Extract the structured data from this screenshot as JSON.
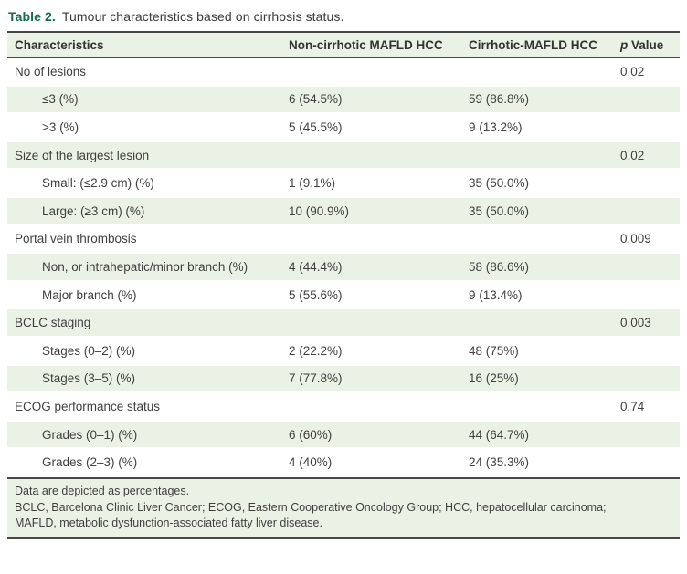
{
  "title": {
    "label": "Table 2.",
    "text": "Tumour characteristics based on cirrhosis status."
  },
  "colors": {
    "accent_green": "#166a4f",
    "row_shade_green": "#eaf2e5",
    "rule_gray": "#474747",
    "text_gray": "#3f3f3f"
  },
  "table": {
    "columns": [
      "Characteristics",
      "Non-cirrhotic MAFLD HCC",
      "Cirrhotic-MAFLD HCC",
      "p Value"
    ],
    "rows": [
      {
        "label": "No of lesions",
        "indent": false,
        "non_cirrhotic": "",
        "cirrhotic": "",
        "p_value": "0.02",
        "shaded": false
      },
      {
        "label": "≤3 (%)",
        "indent": true,
        "non_cirrhotic": "6 (54.5%)",
        "cirrhotic": "59 (86.8%)",
        "p_value": "",
        "shaded": true
      },
      {
        "label": ">3 (%)",
        "indent": true,
        "non_cirrhotic": "5 (45.5%)",
        "cirrhotic": "9 (13.2%)",
        "p_value": "",
        "shaded": false
      },
      {
        "label": "Size of the largest lesion",
        "indent": false,
        "non_cirrhotic": "",
        "cirrhotic": "",
        "p_value": "0.02",
        "shaded": true
      },
      {
        "label": "Small: (≤2.9 cm) (%)",
        "indent": true,
        "non_cirrhotic": "1 (9.1%)",
        "cirrhotic": "35 (50.0%)",
        "p_value": "",
        "shaded": false
      },
      {
        "label": "Large: (≥3 cm) (%)",
        "indent": true,
        "non_cirrhotic": "10 (90.9%)",
        "cirrhotic": "35 (50.0%)",
        "p_value": "",
        "shaded": true
      },
      {
        "label": "Portal vein thrombosis",
        "indent": false,
        "non_cirrhotic": "",
        "cirrhotic": "",
        "p_value": "0.009",
        "shaded": false
      },
      {
        "label": "Non, or intrahepatic/minor branch (%)",
        "indent": true,
        "non_cirrhotic": "4 (44.4%)",
        "cirrhotic": "58 (86.6%)",
        "p_value": "",
        "shaded": true
      },
      {
        "label": "Major branch (%)",
        "indent": true,
        "non_cirrhotic": "5 (55.6%)",
        "cirrhotic": "9 (13.4%)",
        "p_value": "",
        "shaded": false
      },
      {
        "label": "BCLC staging",
        "indent": false,
        "non_cirrhotic": "",
        "cirrhotic": "",
        "p_value": "0.003",
        "shaded": true
      },
      {
        "label": "Stages (0–2) (%)",
        "indent": true,
        "non_cirrhotic": "2 (22.2%)",
        "cirrhotic": "48 (75%)",
        "p_value": "",
        "shaded": false
      },
      {
        "label": "Stages (3–5) (%)",
        "indent": true,
        "non_cirrhotic": "7 (77.8%)",
        "cirrhotic": "16 (25%)",
        "p_value": "",
        "shaded": true
      },
      {
        "label": "ECOG performance status",
        "indent": false,
        "non_cirrhotic": "",
        "cirrhotic": "",
        "p_value": "0.74",
        "shaded": false
      },
      {
        "label": "Grades (0–1) (%)",
        "indent": true,
        "non_cirrhotic": "6 (60%)",
        "cirrhotic": "44 (64.7%)",
        "p_value": "",
        "shaded": true
      },
      {
        "label": "Grades (2–3) (%)",
        "indent": true,
        "non_cirrhotic": "4 (40%)",
        "cirrhotic": "24 (35.3%)",
        "p_value": "",
        "shaded": false
      }
    ]
  },
  "footnotes": [
    "Data are depicted as percentages.",
    "BCLC, Barcelona Clinic Liver Cancer; ECOG, Eastern Cooperative Oncology Group; HCC, hepatocellular carcinoma;",
    "MAFLD, metabolic dysfunction-associated fatty liver disease."
  ]
}
